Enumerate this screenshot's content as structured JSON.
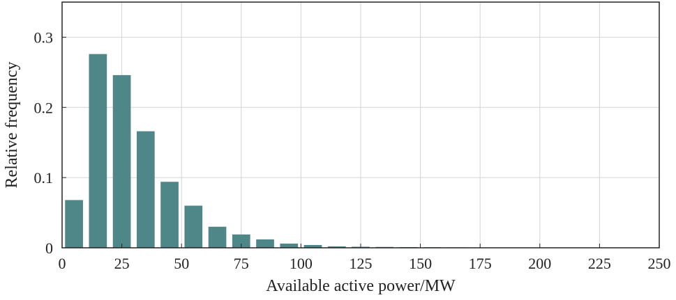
{
  "chart_data": {
    "type": "bar",
    "title": "",
    "xlabel": "Available active power/MW",
    "ylabel": "Relative frequency",
    "xlim": [
      0,
      250
    ],
    "ylim": [
      0,
      0.35
    ],
    "xticks": [
      0,
      25,
      50,
      75,
      100,
      125,
      150,
      175,
      200,
      225,
      250
    ],
    "xtick_labels": [
      "0",
      "25",
      "50",
      "75",
      "100",
      "125",
      "150",
      "175",
      "200",
      "225",
      "250"
    ],
    "yticks": [
      0,
      0.1,
      0.2,
      0.3
    ],
    "ytick_labels": [
      "0",
      "0.1",
      "0.2",
      "0.3"
    ],
    "grid": true,
    "bar_width": 7.5,
    "bar_color": "#4f8688",
    "x": [
      5,
      15,
      25,
      35,
      45,
      55,
      65,
      75,
      85,
      95,
      105,
      115,
      125,
      135,
      145,
      155,
      165,
      175,
      185,
      195,
      205,
      215,
      225,
      235,
      245
    ],
    "values": [
      0.068,
      0.276,
      0.246,
      0.166,
      0.094,
      0.06,
      0.03,
      0.019,
      0.012,
      0.006,
      0.004,
      0.002,
      0.0015,
      0.0012,
      0.001,
      0.0008,
      0.0006,
      0.0005,
      0.0004,
      0.0003,
      0.0003,
      0.0002,
      0.0002,
      0.0002,
      0.0001
    ]
  }
}
